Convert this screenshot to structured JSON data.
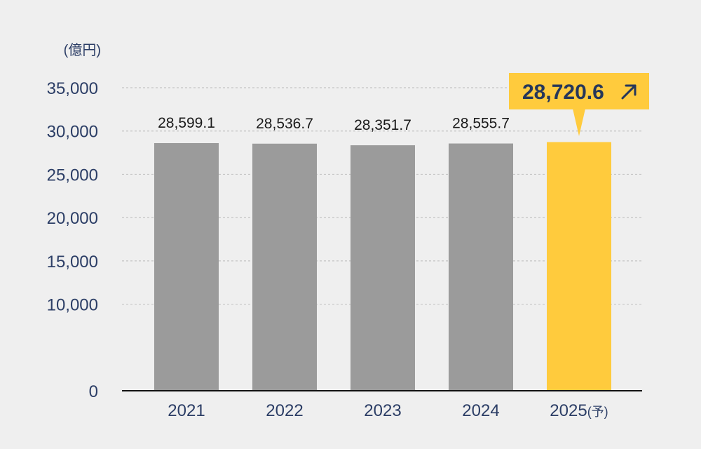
{
  "chart_data": {
    "type": "bar",
    "unit_label": "(億円)",
    "categories": [
      "2021",
      "2022",
      "2023",
      "2024",
      "2025"
    ],
    "category_suffix": [
      "",
      "",
      "",
      "",
      "(予)"
    ],
    "values": [
      28599.1,
      28536.7,
      28351.7,
      28555.7,
      28720.6
    ],
    "value_labels": [
      "28,599.1",
      "28,536.7",
      "28,351.7",
      "28,555.7",
      "28,720.6"
    ],
    "ylim": [
      0,
      35000
    ],
    "yticks": [
      0,
      10000,
      15000,
      20000,
      25000,
      30000,
      35000
    ],
    "ytick_labels": [
      "0",
      "10,000",
      "15,000",
      "20,000",
      "25,000",
      "30,000",
      "35,000"
    ],
    "grid": true,
    "colors": {
      "bar": "#9b9b9b",
      "highlight_bar": "#ffcb3d",
      "callout_bg": "#ffcb3d",
      "callout_text": "#26375a",
      "axis_text": "#2c3e66"
    },
    "callout": {
      "text": "28,720.6",
      "icon": "arrow-up-right-icon"
    }
  }
}
